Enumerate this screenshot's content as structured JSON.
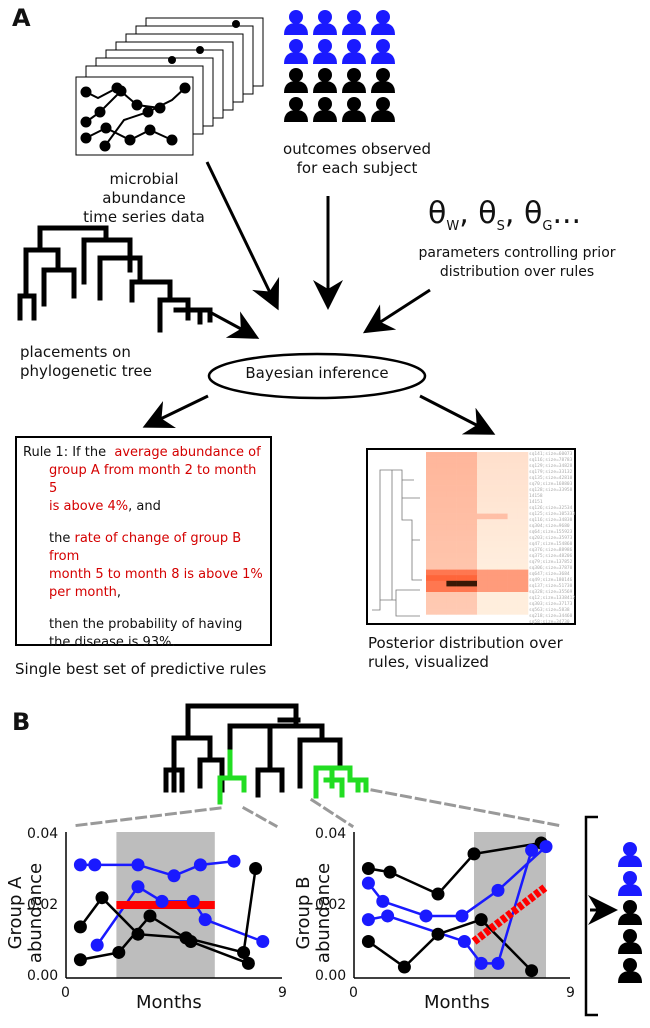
{
  "panels": {
    "a": "A",
    "b": "B"
  },
  "labels": {
    "microbial": [
      "microbial abundance",
      "time series data"
    ],
    "outcomes": [
      "outcomes observed",
      "for each subject"
    ],
    "params": [
      "parameters controlling prior",
      "distribution over rules"
    ],
    "tree": [
      "placements on",
      "phylogenetic tree"
    ],
    "inference": "Bayesian inference",
    "best_rules": "Single best set of predictive rules",
    "posterior": [
      "Posterior distribution over",
      "rules, visualized"
    ]
  },
  "theta": {
    "symbol": "θ",
    "subs": [
      "W",
      "S",
      "G"
    ],
    "ellipsis": "..."
  },
  "rule": {
    "prefix": "Rule 1: If the",
    "r1": [
      "average abundance of",
      "group A  from month 2 to month 5",
      "is above  4%"
    ],
    "and": ", and",
    "the": "the",
    "r2": [
      "rate of change of group B from",
      "month 5 to month 8 is above 1%",
      "per month"
    ],
    "comma": ",",
    "then": [
      "then the probability of having",
      "the disease is 93%."
    ]
  },
  "heatmap_labels": [
    "sq141;size=60073",
    "sq116;size=78783",
    "sq129;size=34828",
    "sq179;size=33132",
    "sq135;size=42810",
    "sq70;size=168803",
    "sq128;size=33958",
    "14158",
    "14151",
    "sq126;size=32534",
    "sq125;size=105333",
    "sq116;size=34830",
    "sq304;size=9680",
    "sq64;size=155923",
    "sq203;size=35973",
    "sq47;size=154860",
    "sq376;size=88986",
    "sq375;size=48206",
    "sq79;size=137852",
    "sq306;size=37870",
    "sq647;size=3684",
    "sq49;size=180146",
    "sq137;size=51730",
    "sq328;size=35569",
    "sq12;size=1338412",
    "sq303;size=37173",
    "sq563;size=5838",
    "sq218;size=34460",
    "sq58;size=34730"
  ],
  "chart_a": {
    "ylabel": [
      "Group A",
      "abundance"
    ],
    "xlabel": "Months",
    "yticks": [
      "0.04",
      "0.02",
      "0.00"
    ],
    "xticks": [
      "0",
      "9"
    ]
  },
  "chart_b": {
    "ylabel": [
      "Group B",
      "abundance"
    ],
    "xlabel": "Months",
    "yticks": [
      "0.04",
      "0.02",
      "0.00"
    ],
    "xticks": [
      "0",
      "9"
    ]
  },
  "colors": {
    "blue": "#1a1aff",
    "red": "#ff0000",
    "green": "#22dd22",
    "shade": "#bdbdbd"
  }
}
